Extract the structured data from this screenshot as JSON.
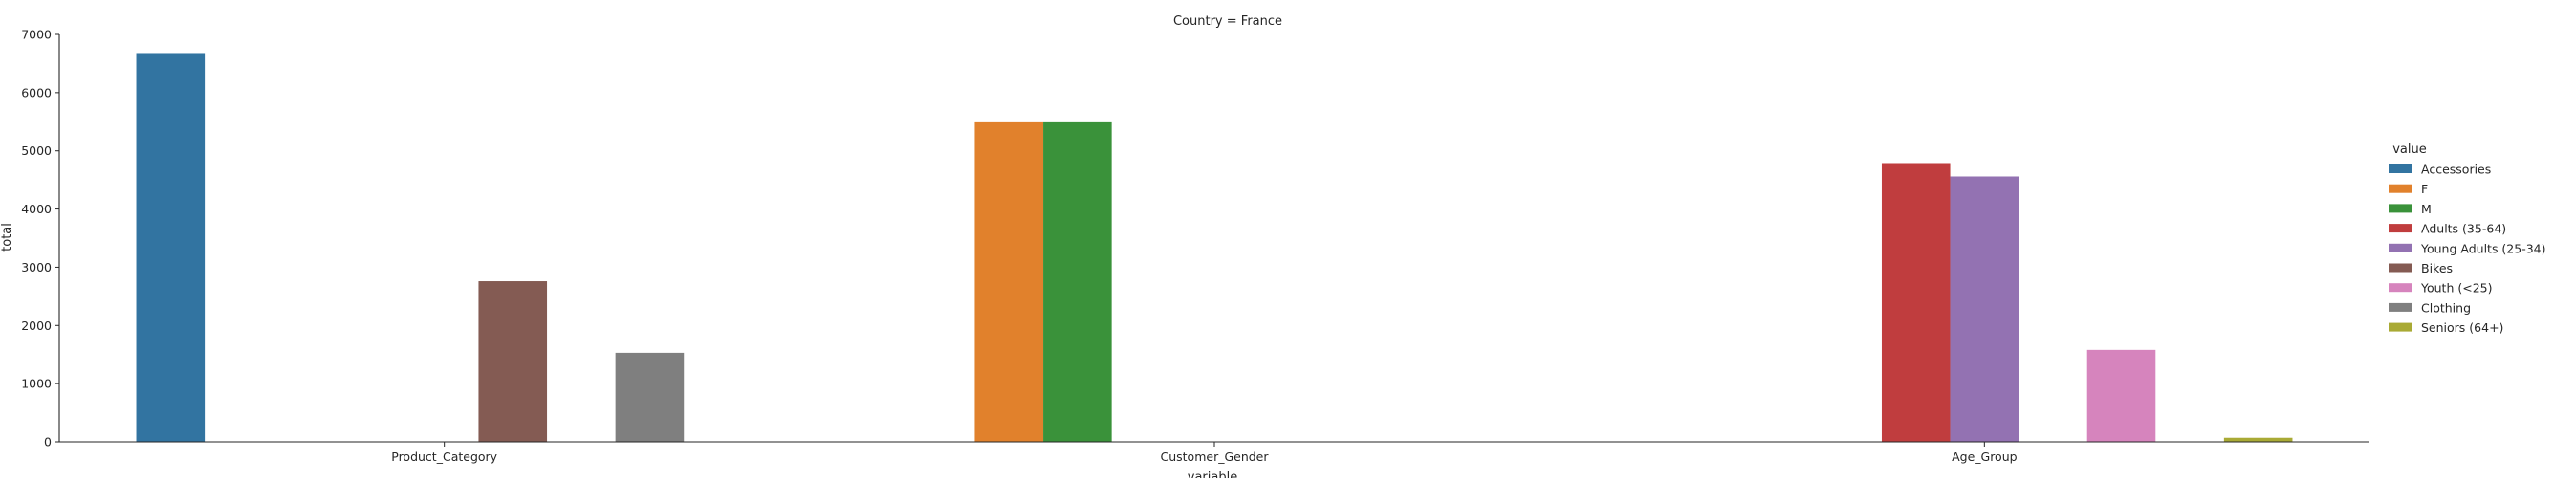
{
  "chart_data": {
    "type": "bar",
    "title": "Country = France",
    "xlabel": "variable",
    "ylabel": "total",
    "ylim": [
      0,
      7000
    ],
    "yticks": [
      0,
      1000,
      2000,
      3000,
      4000,
      5000,
      6000,
      7000
    ],
    "grid": false,
    "legend_title": "value",
    "legend_position": "right",
    "categories": [
      "Product_Category",
      "Customer_Gender",
      "Age_Group"
    ],
    "series": [
      {
        "name": "Accessories",
        "color": "#3274a1",
        "values": [
          6680,
          0,
          0
        ]
      },
      {
        "name": "F",
        "color": "#e1812c",
        "values": [
          0,
          5490,
          0
        ]
      },
      {
        "name": "M",
        "color": "#3a923a",
        "values": [
          0,
          5490,
          0
        ]
      },
      {
        "name": "Adults (35-64)",
        "color": "#c03d3e",
        "values": [
          0,
          0,
          4790
        ]
      },
      {
        "name": "Young Adults (25-34)",
        "color": "#9372b2",
        "values": [
          0,
          0,
          4560
        ]
      },
      {
        "name": "Bikes",
        "color": "#845b53",
        "values": [
          2760,
          0,
          0
        ]
      },
      {
        "name": "Youth (<25)",
        "color": "#d684bd",
        "values": [
          0,
          0,
          1580
        ]
      },
      {
        "name": "Clothing",
        "color": "#7f7f7f",
        "values": [
          1530,
          0,
          0
        ]
      },
      {
        "name": "Seniors (64+)",
        "color": "#a9aa35",
        "values": [
          0,
          0,
          70
        ]
      }
    ]
  }
}
